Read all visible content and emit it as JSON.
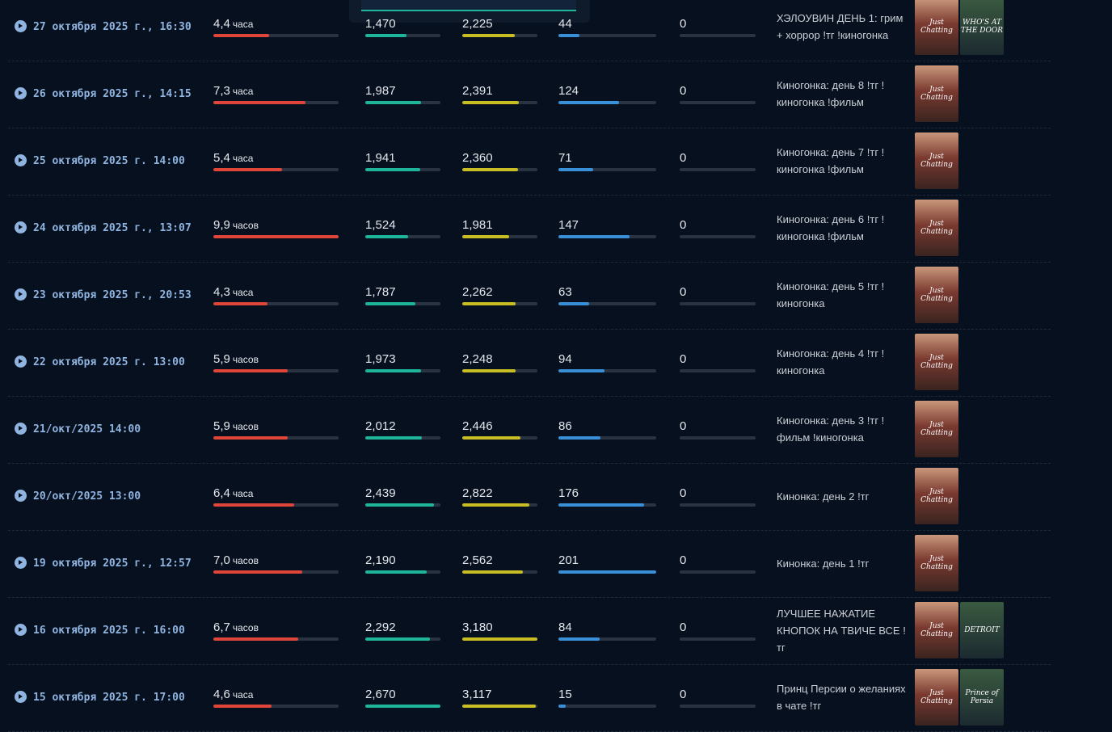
{
  "rows": [
    {
      "date": "27 октября 2025 г., 16:30",
      "duration": {
        "value": 4.4,
        "label": "4,4",
        "unit": "часа"
      },
      "avg": {
        "value": 1470,
        "label": "1,470"
      },
      "peak": {
        "value": 2225,
        "label": "2,225"
      },
      "followers": 44,
      "other": 0,
      "title": "ХЭЛОУВИН ДЕНЬ 1: грим + хоррор !тг !киногонка",
      "games": [
        "Just Chatting",
        "WHO'S AT THE DOOR"
      ]
    },
    {
      "date": "26 октября 2025 г., 14:15",
      "duration": {
        "value": 7.3,
        "label": "7,3",
        "unit": "часа"
      },
      "avg": {
        "value": 1987,
        "label": "1,987"
      },
      "peak": {
        "value": 2391,
        "label": "2,391"
      },
      "followers": 124,
      "other": 0,
      "title": "Киногонка: день 8 !тг ! киногонка !фильм",
      "games": [
        "Just Chatting"
      ]
    },
    {
      "date": "25 октября 2025 г. 14:00",
      "duration": {
        "value": 5.4,
        "label": "5,4",
        "unit": "часа"
      },
      "avg": {
        "value": 1941,
        "label": "1,941"
      },
      "peak": {
        "value": 2360,
        "label": "2,360"
      },
      "followers": 71,
      "other": 0,
      "title": "Киногонка: день 7 !тг ! киногонка !фильм",
      "games": [
        "Just Chatting"
      ]
    },
    {
      "date": "24 октября 2025 г., 13:07",
      "duration": {
        "value": 9.9,
        "label": "9,9",
        "unit": "часов"
      },
      "avg": {
        "value": 1524,
        "label": "1,524"
      },
      "peak": {
        "value": 1981,
        "label": "1,981"
      },
      "followers": 147,
      "other": 0,
      "title": "Киногонка: день 6 !тг ! киногонка !фильм",
      "games": [
        "Just Chatting"
      ]
    },
    {
      "date": "23 октября 2025 г., 20:53",
      "duration": {
        "value": 4.3,
        "label": "4,3",
        "unit": "часа"
      },
      "avg": {
        "value": 1787,
        "label": "1,787"
      },
      "peak": {
        "value": 2262,
        "label": "2,262"
      },
      "followers": 63,
      "other": 0,
      "title": "Киногонка: день 5 !тг ! киногонка",
      "games": [
        "Just Chatting"
      ]
    },
    {
      "date": "22 октября 2025 г. 13:00",
      "duration": {
        "value": 5.9,
        "label": "5,9",
        "unit": "часов"
      },
      "avg": {
        "value": 1973,
        "label": "1,973"
      },
      "peak": {
        "value": 2248,
        "label": "2,248"
      },
      "followers": 94,
      "other": 0,
      "title": "Киногонка: день 4 !тг ! киногонка",
      "games": [
        "Just Chatting"
      ]
    },
    {
      "date": "21/окт/2025 14:00",
      "duration": {
        "value": 5.9,
        "label": "5,9",
        "unit": "часов"
      },
      "avg": {
        "value": 2012,
        "label": "2,012"
      },
      "peak": {
        "value": 2446,
        "label": "2,446"
      },
      "followers": 86,
      "other": 0,
      "title": "Киногонка: день 3 !тг ! фильм !киногонка",
      "games": [
        "Just Chatting"
      ]
    },
    {
      "date": "20/окт/2025 13:00",
      "duration": {
        "value": 6.4,
        "label": "6,4",
        "unit": "часа"
      },
      "avg": {
        "value": 2439,
        "label": "2,439"
      },
      "peak": {
        "value": 2822,
        "label": "2,822"
      },
      "followers": 176,
      "other": 0,
      "title": "Кинонка: день 2 !тг",
      "games": [
        "Just Chatting"
      ]
    },
    {
      "date": "19 октября 2025 г., 12:57",
      "duration": {
        "value": 7.0,
        "label": "7,0",
        "unit": "часов"
      },
      "avg": {
        "value": 2190,
        "label": "2,190"
      },
      "peak": {
        "value": 2562,
        "label": "2,562"
      },
      "followers": 201,
      "other": 0,
      "title": "Кинонка: день 1 !тг",
      "games": [
        "Just Chatting"
      ]
    },
    {
      "date": "16 октября 2025 г. 16:00",
      "duration": {
        "value": 6.7,
        "label": "6,7",
        "unit": "часов"
      },
      "avg": {
        "value": 2292,
        "label": "2,292"
      },
      "peak": {
        "value": 3180,
        "label": "3,180"
      },
      "followers": 84,
      "other": 0,
      "title": "ЛУЧШЕЕ НАЖАТИЕ КНОПОК НА ТВИЧЕ ВСЕ ! тг",
      "games": [
        "Just Chatting",
        "DETROIT"
      ]
    },
    {
      "date": "15 октября 2025 г. 17:00",
      "duration": {
        "value": 4.6,
        "label": "4,6",
        "unit": "часа"
      },
      "avg": {
        "value": 2670,
        "label": "2,670"
      },
      "peak": {
        "value": 3117,
        "label": "3,117"
      },
      "followers": 15,
      "other": 0,
      "title": "Принц Персии о желаниях в чате !тг",
      "games": [
        "Just Chatting",
        "Prince of Persia"
      ]
    }
  ]
}
